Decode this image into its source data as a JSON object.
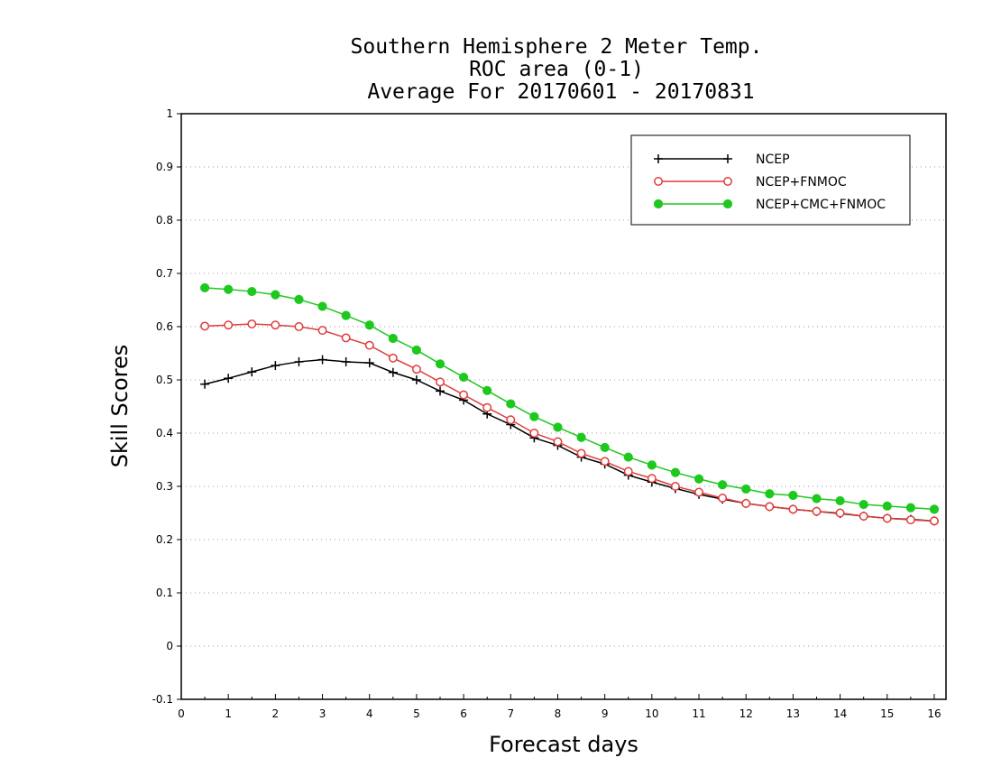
{
  "chart_data": {
    "type": "line",
    "title_lines": [
      "Southern Hemisphere 2 Meter Temp.",
      "ROC area (0-1)",
      "Average For 20170601 - 20170831"
    ],
    "xlabel": "Forecast days",
    "ylabel": "Skill Scores",
    "xlim": [
      0,
      16.25
    ],
    "ylim": [
      -0.1,
      1
    ],
    "x_ticks": [
      0,
      1,
      2,
      3,
      4,
      5,
      6,
      7,
      8,
      9,
      10,
      11,
      12,
      13,
      14,
      15,
      16
    ],
    "x_tick_labels": [
      "0",
      "1",
      "2",
      "3",
      "4",
      "5",
      "6",
      "7",
      "8",
      "9",
      "10",
      "11",
      "12",
      "13",
      "14",
      "15",
      "16"
    ],
    "y_ticks": [
      -0.1,
      0,
      0.1,
      0.2,
      0.3,
      0.4,
      0.5,
      0.6,
      0.7,
      0.8,
      0.9,
      1
    ],
    "y_tick_labels": [
      "-0.1",
      "0",
      "0.1",
      "0.2",
      "0.3",
      "0.4",
      "0.5",
      "0.6",
      "0.7",
      "0.8",
      "0.9",
      "1"
    ],
    "grid": "horizontal dotted",
    "legend_position": "top-right",
    "x": [
      0.5,
      1.0,
      1.5,
      2.0,
      2.5,
      3.0,
      3.5,
      4.0,
      4.5,
      5.0,
      5.5,
      6.0,
      6.5,
      7.0,
      7.5,
      8.0,
      8.5,
      9.0,
      9.5,
      10.0,
      10.5,
      11.0,
      11.5,
      12.0,
      12.5,
      13.0,
      13.5,
      14.0,
      14.5,
      15.0,
      15.5,
      16.0
    ],
    "series": [
      {
        "name": "NCEP",
        "color": "#000000",
        "marker": "plus",
        "values": [
          0.492,
          0.503,
          0.515,
          0.527,
          0.534,
          0.538,
          0.534,
          0.532,
          0.514,
          0.5,
          0.479,
          0.462,
          0.436,
          0.416,
          0.391,
          0.377,
          0.355,
          0.342,
          0.321,
          0.308,
          0.296,
          0.285,
          0.276,
          0.268,
          0.262,
          0.257,
          0.253,
          0.249,
          0.244,
          0.24,
          0.238,
          0.235
        ]
      },
      {
        "name": "NCEP+FNMOC",
        "color": "#e03c3c",
        "marker": "open-circle",
        "values": [
          0.601,
          0.603,
          0.605,
          0.603,
          0.6,
          0.593,
          0.579,
          0.565,
          0.541,
          0.52,
          0.496,
          0.472,
          0.448,
          0.425,
          0.4,
          0.384,
          0.362,
          0.347,
          0.328,
          0.315,
          0.3,
          0.289,
          0.278,
          0.268,
          0.262,
          0.257,
          0.253,
          0.25,
          0.244,
          0.24,
          0.237,
          0.235
        ]
      },
      {
        "name": "NCEP+CMC+FNMOC",
        "color": "#1fc81f",
        "marker": "filled-circle",
        "values": [
          0.673,
          0.67,
          0.666,
          0.66,
          0.651,
          0.638,
          0.621,
          0.603,
          0.578,
          0.556,
          0.53,
          0.505,
          0.48,
          0.455,
          0.431,
          0.411,
          0.392,
          0.373,
          0.355,
          0.34,
          0.326,
          0.314,
          0.303,
          0.295,
          0.286,
          0.283,
          0.277,
          0.273,
          0.266,
          0.263,
          0.26,
          0.257
        ]
      }
    ]
  }
}
